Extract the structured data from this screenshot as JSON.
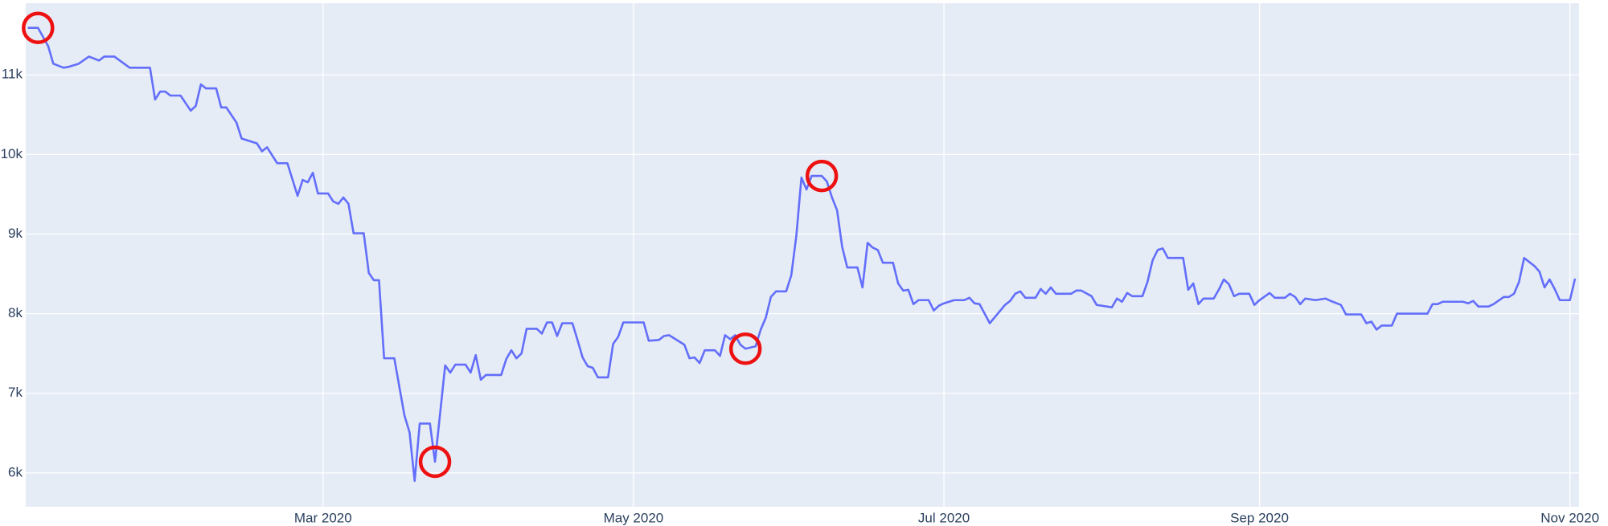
{
  "chart_data": {
    "type": "line",
    "color": "#636efa",
    "plot_bgcolor": "#e5ecf6",
    "grid": true,
    "highlight_color": "#ee1111",
    "highlights": [
      1,
      54,
      101,
      113
    ],
    "xlim": [
      "2020-01-02T14:00:00Z",
      "2020-11-02T19:00:00Z"
    ],
    "xticks": [
      {
        "value": "2020-03-01",
        "label": "Mar 2020"
      },
      {
        "value": "2020-05-01",
        "label": "May 2020"
      },
      {
        "value": "2020-07-01",
        "label": "Jul 2020"
      },
      {
        "value": "2020-09-01",
        "label": "Sep 2020"
      },
      {
        "value": "2020-11-01",
        "label": "Nov 2020"
      }
    ],
    "ylim": [
      5575,
      11900
    ],
    "yticks": [
      {
        "value": 6000,
        "label": "6k"
      },
      {
        "value": 7000,
        "label": "7k"
      },
      {
        "value": 8000,
        "label": "8k"
      },
      {
        "value": 9000,
        "label": "9k"
      },
      {
        "value": 10000,
        "label": "10k"
      },
      {
        "value": 11000,
        "label": "11k"
      }
    ],
    "x": [
      "2020-01-03",
      "2020-01-05",
      "2020-01-07",
      "2020-01-08",
      "2020-01-10",
      "2020-01-11",
      "2020-01-13",
      "2020-01-15",
      "2020-01-17",
      "2020-01-18",
      "2020-01-20",
      "2020-01-23",
      "2020-01-27",
      "2020-01-28",
      "2020-01-29",
      "2020-01-30",
      "2020-01-31",
      "2020-02-02",
      "2020-02-04",
      "2020-02-05",
      "2020-02-06",
      "2020-02-07",
      "2020-02-09",
      "2020-02-10",
      "2020-02-11",
      "2020-02-13",
      "2020-02-14",
      "2020-02-17",
      "2020-02-18",
      "2020-02-19",
      "2020-02-21",
      "2020-02-23",
      "2020-02-25",
      "2020-02-26",
      "2020-02-27",
      "2020-02-28",
      "2020-02-29",
      "2020-03-02",
      "2020-03-03",
      "2020-03-04",
      "2020-03-05",
      "2020-03-06",
      "2020-03-07",
      "2020-03-09",
      "2020-03-10",
      "2020-03-11",
      "2020-03-12",
      "2020-03-13",
      "2020-03-15",
      "2020-03-17",
      "2020-03-18",
      "2020-03-19",
      "2020-03-20",
      "2020-03-22",
      "2020-03-23",
      "2020-03-25",
      "2020-03-26",
      "2020-03-27",
      "2020-03-29",
      "2020-03-30",
      "2020-03-31",
      "2020-04-01",
      "2020-04-02",
      "2020-04-05",
      "2020-04-06",
      "2020-04-07",
      "2020-04-08",
      "2020-04-09",
      "2020-04-10",
      "2020-04-12",
      "2020-04-13",
      "2020-04-14",
      "2020-04-15",
      "2020-04-16",
      "2020-04-17",
      "2020-04-19",
      "2020-04-20",
      "2020-04-21",
      "2020-04-22",
      "2020-04-23",
      "2020-04-24",
      "2020-04-26",
      "2020-04-27",
      "2020-04-28",
      "2020-04-29",
      "2020-05-03",
      "2020-05-04",
      "2020-05-06",
      "2020-05-07",
      "2020-05-08",
      "2020-05-11",
      "2020-05-12",
      "2020-05-13",
      "2020-05-14",
      "2020-05-15",
      "2020-05-17",
      "2020-05-18",
      "2020-05-19",
      "2020-05-20",
      "2020-05-21",
      "2020-05-22",
      "2020-05-23",
      "2020-05-25",
      "2020-05-26",
      "2020-05-27",
      "2020-05-28",
      "2020-05-29",
      "2020-05-31",
      "2020-06-01",
      "2020-06-02",
      "2020-06-03",
      "2020-06-04",
      "2020-06-05",
      "2020-06-07",
      "2020-06-08",
      "2020-06-09",
      "2020-06-10",
      "2020-06-11",
      "2020-06-12",
      "2020-06-14",
      "2020-06-15",
      "2020-06-16",
      "2020-06-17",
      "2020-06-18",
      "2020-06-19",
      "2020-06-21",
      "2020-06-22",
      "2020-06-23",
      "2020-06-24",
      "2020-06-25",
      "2020-06-26",
      "2020-06-28",
      "2020-06-29",
      "2020-06-30",
      "2020-07-01",
      "2020-07-03",
      "2020-07-05",
      "2020-07-06",
      "2020-07-07",
      "2020-07-08",
      "2020-07-10",
      "2020-07-13",
      "2020-07-14",
      "2020-07-15",
      "2020-07-16",
      "2020-07-17",
      "2020-07-19",
      "2020-07-20",
      "2020-07-21",
      "2020-07-22",
      "2020-07-23",
      "2020-07-26",
      "2020-07-27",
      "2020-07-28",
      "2020-07-30",
      "2020-07-31",
      "2020-08-03",
      "2020-08-04",
      "2020-08-05",
      "2020-08-06",
      "2020-08-07",
      "2020-08-09",
      "2020-08-10",
      "2020-08-11",
      "2020-08-12",
      "2020-08-13",
      "2020-08-14",
      "2020-08-17",
      "2020-08-18",
      "2020-08-19",
      "2020-08-20",
      "2020-08-21",
      "2020-08-23",
      "2020-08-24",
      "2020-08-25",
      "2020-08-26",
      "2020-08-27",
      "2020-08-28",
      "2020-08-30",
      "2020-08-31",
      "2020-09-01",
      "2020-09-03",
      "2020-09-04",
      "2020-09-06",
      "2020-09-07",
      "2020-09-08",
      "2020-09-09",
      "2020-09-10",
      "2020-09-12",
      "2020-09-14",
      "2020-09-15",
      "2020-09-17",
      "2020-09-18",
      "2020-09-21",
      "2020-09-22",
      "2020-09-23",
      "2020-09-24",
      "2020-09-25",
      "2020-09-27",
      "2020-09-28",
      "2020-10-04",
      "2020-10-05",
      "2020-10-06",
      "2020-10-07",
      "2020-10-11",
      "2020-10-12",
      "2020-10-13",
      "2020-10-14",
      "2020-10-16",
      "2020-10-17",
      "2020-10-19",
      "2020-10-20",
      "2020-10-21",
      "2020-10-22",
      "2020-10-23",
      "2020-10-25",
      "2020-10-26",
      "2020-10-27",
      "2020-10-28",
      "2020-10-29",
      "2020-10-30",
      "2020-11-01",
      "2020-11-02"
    ],
    "values": [
      11590,
      11590,
      11360,
      11140,
      11090,
      11100,
      11140,
      11230,
      11180,
      11230,
      11230,
      11090,
      11090,
      10690,
      10790,
      10790,
      10740,
      10740,
      10550,
      10610,
      10880,
      10830,
      10830,
      10590,
      10590,
      10400,
      10200,
      10140,
      10040,
      10090,
      9890,
      9890,
      9480,
      9680,
      9650,
      9770,
      9510,
      9510,
      9410,
      9380,
      9460,
      9380,
      9010,
      9010,
      8510,
      8420,
      8420,
      7440,
      7440,
      6720,
      6510,
      5900,
      6620,
      6620,
      6140,
      7350,
      7260,
      7360,
      7360,
      7260,
      7480,
      7170,
      7230,
      7230,
      7430,
      7540,
      7440,
      7500,
      7810,
      7810,
      7750,
      7890,
      7890,
      7720,
      7880,
      7880,
      7670,
      7450,
      7340,
      7320,
      7200,
      7200,
      7620,
      7710,
      7890,
      7890,
      7660,
      7670,
      7720,
      7730,
      7610,
      7440,
      7450,
      7380,
      7540,
      7540,
      7470,
      7730,
      7680,
      7730,
      7610,
      7560,
      7590,
      7800,
      7950,
      8210,
      8280,
      8280,
      8480,
      8980,
      9710,
      9560,
      9730,
      9730,
      9660,
      9460,
      9300,
      8840,
      8580,
      8580,
      8330,
      8890,
      8830,
      8800,
      8640,
      8640,
      8380,
      8290,
      8300,
      8120,
      8170,
      8170,
      8040,
      8100,
      8130,
      8170,
      8170,
      8200,
      8130,
      8120,
      7880,
      8110,
      8160,
      8250,
      8280,
      8200,
      8200,
      8310,
      8250,
      8330,
      8250,
      8250,
      8290,
      8290,
      8220,
      8110,
      8080,
      8190,
      8150,
      8260,
      8220,
      8220,
      8400,
      8670,
      8800,
      8820,
      8700,
      8700,
      8300,
      8380,
      8120,
      8190,
      8190,
      8300,
      8430,
      8370,
      8220,
      8250,
      8250,
      8110,
      8170,
      8260,
      8200,
      8200,
      8250,
      8210,
      8120,
      8190,
      8170,
      8190,
      8160,
      8110,
      7990,
      7990,
      7880,
      7900,
      7800,
      7850,
      7850,
      8000,
      8000,
      8120,
      8120,
      8150,
      8150,
      8130,
      8160,
      8090,
      8090,
      8120,
      8210,
      8210,
      8250,
      8400,
      8700,
      8600,
      8530,
      8330,
      8430,
      8310,
      8170,
      8170,
      8440
    ]
  }
}
